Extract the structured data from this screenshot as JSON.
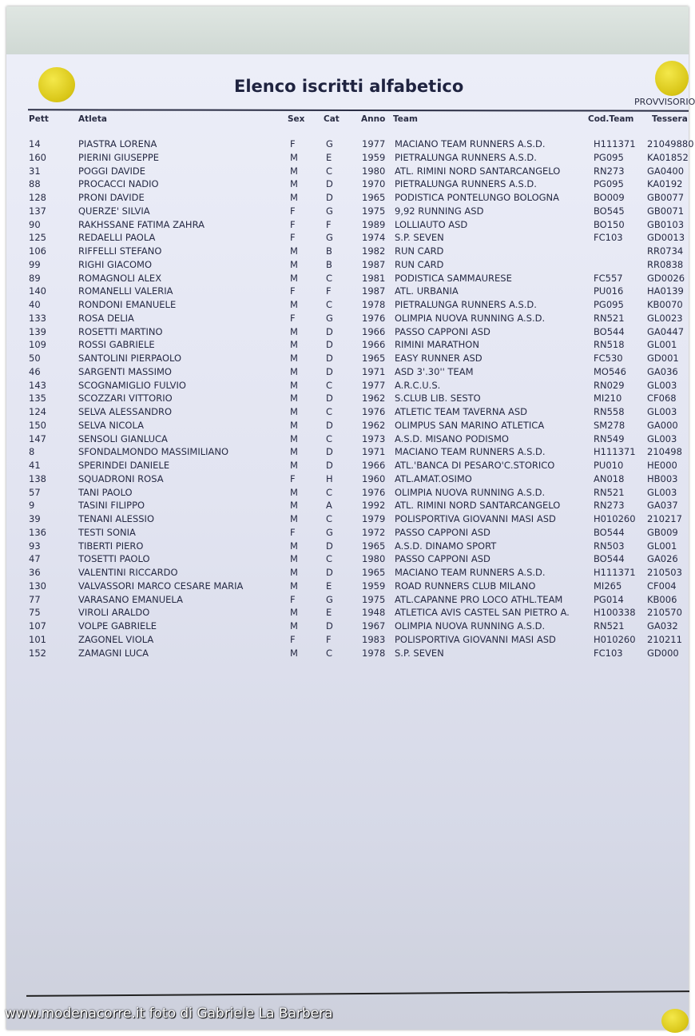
{
  "document": {
    "title": "Elenco iscritti alfabetico",
    "status": "PROVVISORIO",
    "columns": {
      "pett": "Pett",
      "atleta": "Atleta",
      "sex": "Sex",
      "cat": "Cat",
      "anno": "Anno",
      "team": "Team",
      "cod_team": "Cod.Team",
      "tessera": "Tessera"
    },
    "rows": [
      {
        "pett": "14",
        "atleta": "PIASTRA LORENA",
        "sex": "F",
        "cat": "G",
        "anno": "1977",
        "team": "MACIANO TEAM RUNNERS A.S.D.",
        "cod": "H111371",
        "tessera": "21049880"
      },
      {
        "pett": "160",
        "atleta": "PIERINI GIUSEPPE",
        "sex": "M",
        "cat": "E",
        "anno": "1959",
        "team": "PIETRALUNGA RUNNERS A.S.D.",
        "cod": "PG095",
        "tessera": "KA01852"
      },
      {
        "pett": "31",
        "atleta": "POGGI DAVIDE",
        "sex": "M",
        "cat": "C",
        "anno": "1980",
        "team": "ATL. RIMINI NORD SANTARCANGELO",
        "cod": "RN273",
        "tessera": "GA0400"
      },
      {
        "pett": "88",
        "atleta": "PROCACCI NADIO",
        "sex": "M",
        "cat": "D",
        "anno": "1970",
        "team": "PIETRALUNGA RUNNERS A.S.D.",
        "cod": "PG095",
        "tessera": "KA0192"
      },
      {
        "pett": "128",
        "atleta": "PRONI DAVIDE",
        "sex": "M",
        "cat": "D",
        "anno": "1965",
        "team": "PODISTICA PONTELUNGO BOLOGNA",
        "cod": "BO009",
        "tessera": "GB0077"
      },
      {
        "pett": "137",
        "atleta": "QUERZE' SILVIA",
        "sex": "F",
        "cat": "G",
        "anno": "1975",
        "team": "9,92 RUNNING ASD",
        "cod": "BO545",
        "tessera": "GB0071"
      },
      {
        "pett": "90",
        "atleta": "RAKHSSANE FATIMA ZAHRA",
        "sex": "F",
        "cat": "F",
        "anno": "1989",
        "team": "LOLLIAUTO ASD",
        "cod": "BO150",
        "tessera": "GB0103"
      },
      {
        "pett": "125",
        "atleta": "REDAELLI PAOLA",
        "sex": "F",
        "cat": "G",
        "anno": "1974",
        "team": "S.P. SEVEN",
        "cod": "FC103",
        "tessera": "GD0013"
      },
      {
        "pett": "106",
        "atleta": "RIFFELLI STEFANO",
        "sex": "M",
        "cat": "B",
        "anno": "1982",
        "team": "RUN CARD",
        "cod": "",
        "tessera": "RR0734"
      },
      {
        "pett": "99",
        "atleta": "RIGHI GIACOMO",
        "sex": "M",
        "cat": "B",
        "anno": "1987",
        "team": "RUN CARD",
        "cod": "",
        "tessera": "RR0838"
      },
      {
        "pett": "89",
        "atleta": "ROMAGNOLI ALEX",
        "sex": "M",
        "cat": "C",
        "anno": "1981",
        "team": "PODISTICA SAMMAURESE",
        "cod": "FC557",
        "tessera": "GD0026"
      },
      {
        "pett": "140",
        "atleta": "ROMANELLI VALERIA",
        "sex": "F",
        "cat": "F",
        "anno": "1987",
        "team": "ATL. URBANIA",
        "cod": "PU016",
        "tessera": "HA0139"
      },
      {
        "pett": "40",
        "atleta": "RONDONI EMANUELE",
        "sex": "M",
        "cat": "C",
        "anno": "1978",
        "team": "PIETRALUNGA RUNNERS A.S.D.",
        "cod": "PG095",
        "tessera": "KB0070"
      },
      {
        "pett": "133",
        "atleta": "ROSA DELIA",
        "sex": "F",
        "cat": "G",
        "anno": "1976",
        "team": "OLIMPIA NUOVA RUNNING A.S.D.",
        "cod": "RN521",
        "tessera": "GL0023"
      },
      {
        "pett": "139",
        "atleta": "ROSETTI MARTINO",
        "sex": "M",
        "cat": "D",
        "anno": "1966",
        "team": "PASSO CAPPONI ASD",
        "cod": "BO544",
        "tessera": "GA0447"
      },
      {
        "pett": "109",
        "atleta": "ROSSI GABRIELE",
        "sex": "M",
        "cat": "D",
        "anno": "1966",
        "team": "RIMINI MARATHON",
        "cod": "RN518",
        "tessera": "GL001"
      },
      {
        "pett": "50",
        "atleta": "SANTOLINI PIERPAOLO",
        "sex": "M",
        "cat": "D",
        "anno": "1965",
        "team": "EASY RUNNER ASD",
        "cod": "FC530",
        "tessera": "GD001"
      },
      {
        "pett": "46",
        "atleta": "SARGENTI MASSIMO",
        "sex": "M",
        "cat": "D",
        "anno": "1971",
        "team": "ASD 3'.30'' TEAM",
        "cod": "MO546",
        "tessera": "GA036"
      },
      {
        "pett": "143",
        "atleta": "SCOGNAMIGLIO FULVIO",
        "sex": "M",
        "cat": "C",
        "anno": "1977",
        "team": "A.R.C.U.S.",
        "cod": "RN029",
        "tessera": "GL003"
      },
      {
        "pett": "135",
        "atleta": "SCOZZARI VITTORIO",
        "sex": "M",
        "cat": "D",
        "anno": "1962",
        "team": "S.CLUB LIB. SESTO",
        "cod": "MI210",
        "tessera": "CF068"
      },
      {
        "pett": "124",
        "atleta": "SELVA ALESSANDRO",
        "sex": "M",
        "cat": "C",
        "anno": "1976",
        "team": "ATLETIC TEAM TAVERNA ASD",
        "cod": "RN558",
        "tessera": "GL003"
      },
      {
        "pett": "150",
        "atleta": "SELVA NICOLA",
        "sex": "M",
        "cat": "D",
        "anno": "1962",
        "team": "OLIMPUS SAN MARINO ATLETICA",
        "cod": "SM278",
        "tessera": "GA000"
      },
      {
        "pett": "147",
        "atleta": "SENSOLI GIANLUCA",
        "sex": "M",
        "cat": "C",
        "anno": "1973",
        "team": "A.S.D. MISANO PODISMO",
        "cod": "RN549",
        "tessera": "GL003"
      },
      {
        "pett": "8",
        "atleta": "SFONDALMONDO MASSIMILIANO",
        "sex": "M",
        "cat": "D",
        "anno": "1971",
        "team": "MACIANO TEAM RUNNERS A.S.D.",
        "cod": "H111371",
        "tessera": "210498"
      },
      {
        "pett": "41",
        "atleta": "SPERINDEI DANIELE",
        "sex": "M",
        "cat": "D",
        "anno": "1966",
        "team": "ATL.'BANCA DI PESARO'C.STORICO",
        "cod": "PU010",
        "tessera": "HE000"
      },
      {
        "pett": "138",
        "atleta": "SQUADRONI ROSA",
        "sex": "F",
        "cat": "H",
        "anno": "1960",
        "team": "ATL.AMAT.OSIMO",
        "cod": "AN018",
        "tessera": "HB003"
      },
      {
        "pett": "57",
        "atleta": "TANI PAOLO",
        "sex": "M",
        "cat": "C",
        "anno": "1976",
        "team": "OLIMPIA NUOVA RUNNING A.S.D.",
        "cod": "RN521",
        "tessera": "GL003"
      },
      {
        "pett": "9",
        "atleta": "TASINI FILIPPO",
        "sex": "M",
        "cat": "A",
        "anno": "1992",
        "team": "ATL. RIMINI NORD SANTARCANGELO",
        "cod": "RN273",
        "tessera": "GA037"
      },
      {
        "pett": "39",
        "atleta": "TENANI ALESSIO",
        "sex": "M",
        "cat": "C",
        "anno": "1979",
        "team": "POLISPORTIVA GIOVANNI MASI ASD",
        "cod": "H010260",
        "tessera": "210217"
      },
      {
        "pett": "136",
        "atleta": "TESTI SONIA",
        "sex": "F",
        "cat": "G",
        "anno": "1972",
        "team": "PASSO CAPPONI ASD",
        "cod": "BO544",
        "tessera": "GB009"
      },
      {
        "pett": "93",
        "atleta": "TIBERTI PIERO",
        "sex": "M",
        "cat": "D",
        "anno": "1965",
        "team": "A.S.D. DINAMO SPORT",
        "cod": "RN503",
        "tessera": "GL001"
      },
      {
        "pett": "47",
        "atleta": "TOSETTI PAOLO",
        "sex": "M",
        "cat": "C",
        "anno": "1980",
        "team": "PASSO CAPPONI ASD",
        "cod": "BO544",
        "tessera": "GA026"
      },
      {
        "pett": "36",
        "atleta": "VALENTINI RICCARDO",
        "sex": "M",
        "cat": "D",
        "anno": "1965",
        "team": "MACIANO TEAM RUNNERS A.S.D.",
        "cod": "H111371",
        "tessera": "210503"
      },
      {
        "pett": "130",
        "atleta": "VALVASSORI MARCO CESARE MARIA",
        "sex": "M",
        "cat": "E",
        "anno": "1959",
        "team": "ROAD RUNNERS CLUB MILANO",
        "cod": "MI265",
        "tessera": "CF004"
      },
      {
        "pett": "77",
        "atleta": "VARASANO EMANUELA",
        "sex": "F",
        "cat": "G",
        "anno": "1975",
        "team": "ATL.CAPANNE PRO LOCO ATHL.TEAM",
        "cod": "PG014",
        "tessera": "KB006"
      },
      {
        "pett": "75",
        "atleta": "VIROLI ARALDO",
        "sex": "M",
        "cat": "E",
        "anno": "1948",
        "team": "ATLETICA AVIS CASTEL SAN PIETRO A.",
        "cod": "H100338",
        "tessera": "210570"
      },
      {
        "pett": "107",
        "atleta": "VOLPE GABRIELE",
        "sex": "M",
        "cat": "D",
        "anno": "1967",
        "team": "OLIMPIA NUOVA RUNNING A.S.D.",
        "cod": "RN521",
        "tessera": "GA032"
      },
      {
        "pett": "101",
        "atleta": "ZAGONEL VIOLA",
        "sex": "F",
        "cat": "F",
        "anno": "1983",
        "team": "POLISPORTIVA GIOVANNI MASI ASD",
        "cod": "H010260",
        "tessera": "210211"
      },
      {
        "pett": "152",
        "atleta": "ZAMAGNI LUCA",
        "sex": "M",
        "cat": "C",
        "anno": "1978",
        "team": "S.P. SEVEN",
        "cod": "FC103",
        "tessera": "GD000"
      }
    ]
  },
  "watermark": "www.modenacorre.it foto di Gabriele La Barbera",
  "colors": {
    "paper": "#e6e8f4",
    "text": "#262a44",
    "pin": "#e8d82c"
  }
}
